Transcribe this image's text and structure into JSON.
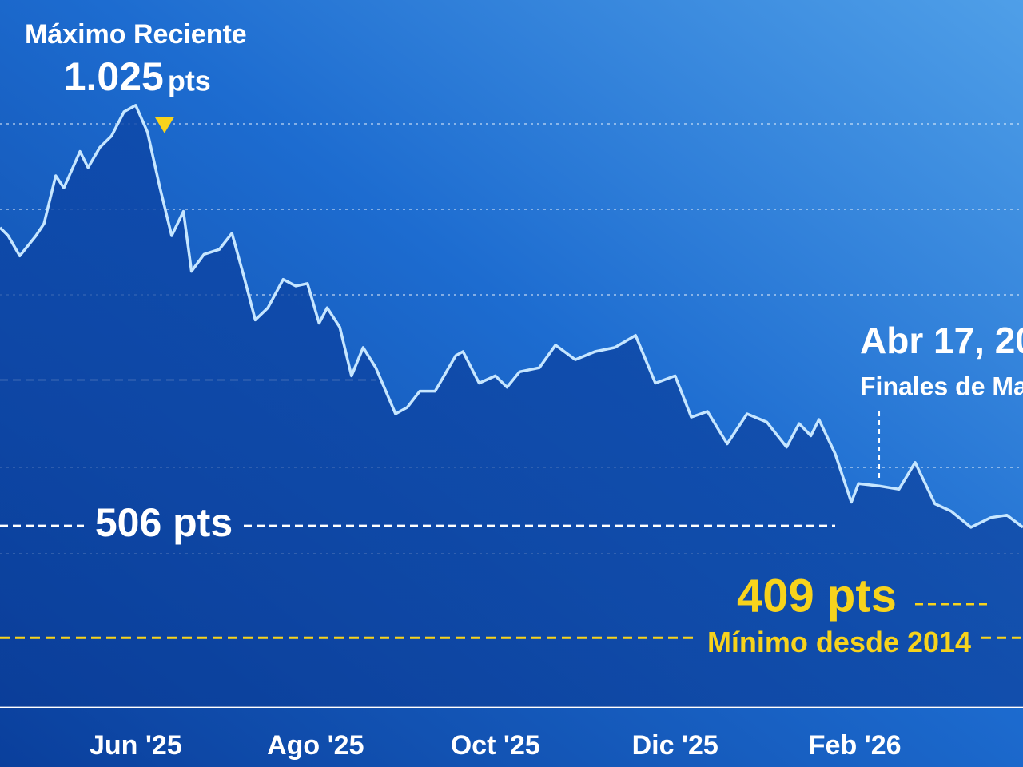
{
  "chart_data": {
    "type": "line",
    "series": [
      {
        "name": null,
        "color": "#c6e6ff",
        "x": [
          -1.51,
          -1.42,
          -1.29,
          -1.11,
          -1.02,
          -0.89,
          -0.8,
          -0.62,
          -0.53,
          -0.4,
          -0.27,
          -0.13,
          0,
          0.13,
          0.27,
          0.4,
          0.53,
          0.62,
          0.76,
          0.93,
          1.07,
          1.2,
          1.33,
          1.47,
          1.64,
          1.78,
          1.91,
          2.04,
          2.13,
          2.27,
          2.4,
          2.53,
          2.67,
          2.89,
          3.02,
          3.16,
          3.33,
          3.56,
          3.64,
          3.82,
          4,
          4.13,
          4.27,
          4.49,
          4.67,
          4.89,
          5.11,
          5.33,
          5.56,
          5.78,
          6,
          6.18,
          6.36,
          6.58,
          6.8,
          7.02,
          7.24,
          7.38,
          7.51,
          7.6,
          7.78,
          7.96,
          8.04,
          8.27,
          8.49,
          8.67,
          8.89,
          9.07,
          9.29,
          9.51,
          9.69,
          9.87
        ],
        "values": [
          874,
          864,
          839,
          864,
          879,
          938,
          923,
          968,
          948,
          973,
          987,
          1017,
          1025,
          992,
          923,
          864,
          894,
          820,
          841,
          847,
          867,
          815,
          760,
          775,
          810,
          802,
          805,
          756,
          775,
          751,
          691,
          726,
          701,
          644,
          652,
          672,
          672,
          716,
          721,
          682,
          691,
          677,
          696,
          701,
          729,
          711,
          721,
          726,
          741,
          682,
          691,
          640,
          647,
          607,
          644,
          634,
          603,
          632,
          617,
          637,
          595,
          535,
          558,
          555,
          551,
          584,
          533,
          524,
          504,
          516,
          519,
          504
        ]
      }
    ],
    "xlim": [
      -1.51,
      9.87
    ],
    "ylim": [
      282,
      1155
    ],
    "xticks": [
      {
        "value": 0,
        "label": "Jun '25"
      },
      {
        "value": 2,
        "label": "Ago '25"
      },
      {
        "value": 4,
        "label": "Oct '25"
      },
      {
        "value": 6,
        "label": "Dic '25"
      },
      {
        "value": 8,
        "label": "Feb '26"
      }
    ],
    "reference_lines": [
      686
    ],
    "annotations": [
      {
        "text": "Máximo Reciente",
        "x": 0,
        "value": 1025,
        "value_label": "1.025",
        "unit": "pts"
      },
      {
        "value": 506,
        "value_label": "506 pts"
      },
      {
        "value": 409,
        "value_label": "409 pts",
        "text": "Mínimo desde 2014"
      },
      {
        "x": 8.27,
        "text": "Abr 17, 20",
        "subtext": "Finales de Ma"
      }
    ]
  }
}
